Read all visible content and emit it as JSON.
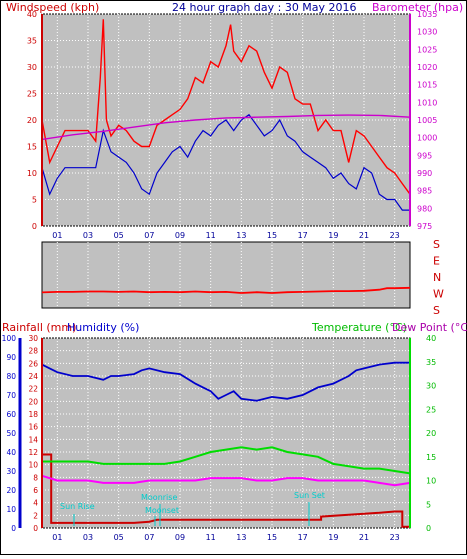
{
  "header": {
    "title": "24 hour graph day : 30 May 2016",
    "left_label": "Windspeed (kph)",
    "right_label": "Barometer (hpa)"
  },
  "colors": {
    "wind": "#ff0000",
    "gust": "#ff0000",
    "avg": "#0000cc",
    "baro": "#cc00cc",
    "dir": "#ff0000",
    "rain": "#cc0000",
    "hum": "#0000cc",
    "temp": "#00dd00",
    "dew": "#ff00ff",
    "sun": "#00cccc",
    "plot_bg": "#c0c0c0"
  },
  "x_ticks": [
    "01",
    "03",
    "05",
    "07",
    "09",
    "11",
    "13",
    "15",
    "17",
    "19",
    "21",
    "23"
  ],
  "wind_axis": {
    "ticks": [
      "0",
      "5",
      "10",
      "15",
      "20",
      "25",
      "30",
      "35",
      "40"
    ]
  },
  "baro_axis": {
    "ticks": [
      "975",
      "980",
      "985",
      "990",
      "995",
      "1000",
      "1005",
      "1010",
      "1015",
      "1020",
      "1025",
      "1030",
      "1035"
    ]
  },
  "dir_axis": {
    "labels": [
      "S",
      "E",
      "N",
      "W",
      "S"
    ]
  },
  "bottom_header": {
    "rain_label": "Rainfall (mm)",
    "hum_label": "Humidity (%)",
    "temp_label": "Temperature (°C)",
    "dew_label": "Dew Point (°C)"
  },
  "rain_axis": {
    "ticks": [
      "0",
      "2",
      "4",
      "6",
      "8",
      "10",
      "12",
      "14",
      "16",
      "18",
      "20",
      "22",
      "24",
      "26",
      "28",
      "30"
    ]
  },
  "hum_axis": {
    "ticks": [
      "0",
      "10",
      "20",
      "30",
      "40",
      "50",
      "60",
      "70",
      "80",
      "90",
      "100"
    ]
  },
  "temp_axis": {
    "ticks": [
      "0",
      "5",
      "10",
      "15",
      "20",
      "25",
      "30",
      "35",
      "40"
    ]
  },
  "annotations": {
    "sunrise": "Sun Rise",
    "moonrise": "Moonrise",
    "sunset": "Sun Set",
    "moonset": "Moonset"
  },
  "chart_data": [
    {
      "type": "line",
      "title": "24 hour graph day : 30 May 2016",
      "ylabel": "Windspeed (kph)",
      "y2label": "Barometer (hpa)",
      "xlim": [
        0,
        24
      ],
      "ylim": [
        0,
        40
      ],
      "y2lim": [
        975,
        1035
      ],
      "series": [
        {
          "name": "Gust",
          "axis": "left",
          "x": [
            0,
            0.5,
            1,
            1.5,
            2,
            2.5,
            3,
            3.5,
            3.8,
            4,
            4.2,
            4.5,
            5,
            5.5,
            6,
            6.5,
            7,
            7.5,
            8,
            8.5,
            9,
            9.5,
            10,
            10.5,
            11,
            11.5,
            12,
            12.3,
            12.5,
            13,
            13.5,
            14,
            14.5,
            15,
            15.5,
            16,
            16.5,
            17,
            17.5,
            18,
            18.5,
            19,
            19.5,
            20,
            20.5,
            21,
            21.5,
            22,
            22.5,
            23,
            23.5,
            24
          ],
          "y": [
            20,
            12,
            15,
            18,
            18,
            18,
            18,
            16,
            28,
            39,
            20,
            17,
            19,
            18,
            16,
            15,
            15,
            19,
            20,
            21,
            22,
            24,
            28,
            27,
            31,
            30,
            34,
            38,
            33,
            31,
            34,
            33,
            29,
            26,
            30,
            29,
            24,
            23,
            23,
            18,
            20,
            18,
            18,
            12,
            18,
            17,
            15,
            13,
            11,
            10,
            8,
            6
          ]
        },
        {
          "name": "Average",
          "axis": "left",
          "x": [
            0,
            0.5,
            1,
            1.5,
            2,
            2.5,
            3,
            3.5,
            4,
            4.5,
            5,
            5.5,
            6,
            6.5,
            7,
            7.5,
            8,
            8.5,
            9,
            9.5,
            10,
            10.5,
            11,
            11.5,
            12,
            12.5,
            13,
            13.5,
            14,
            14.5,
            15,
            15.5,
            16,
            16.5,
            17,
            17.5,
            18,
            18.5,
            19,
            19.5,
            20,
            20.5,
            21,
            21.5,
            22,
            22.5,
            23,
            23.5,
            24
          ],
          "y": [
            11,
            6,
            9,
            11,
            11,
            11,
            11,
            11,
            18,
            14,
            13,
            12,
            10,
            7,
            6,
            10,
            12,
            14,
            15,
            13,
            16,
            18,
            17,
            19,
            20,
            18,
            20,
            21,
            19,
            17,
            18,
            20,
            17,
            16,
            14,
            13,
            12,
            11,
            9,
            10,
            8,
            7,
            11,
            10,
            6,
            5,
            5,
            3,
            3
          ]
        },
        {
          "name": "Barometer",
          "axis": "right",
          "x": [
            0,
            2,
            4,
            6,
            8,
            10,
            12,
            14,
            16,
            18,
            20,
            22,
            24
          ],
          "y": [
            999.5,
            1000.8,
            1001.8,
            1003.0,
            1004.2,
            1005.0,
            1005.6,
            1005.8,
            1006.0,
            1006.3,
            1006.4,
            1006.3,
            1005.8
          ]
        }
      ]
    },
    {
      "type": "line",
      "ylabel": "Wind Direction",
      "xlim": [
        0,
        24
      ],
      "ylim": [
        0,
        360
      ],
      "series": [
        {
          "name": "Direction",
          "x": [
            0,
            1,
            2,
            3,
            4,
            5,
            6,
            7,
            8,
            9,
            10,
            11,
            12,
            13,
            14,
            15,
            16,
            17,
            18,
            19,
            20,
            21,
            22,
            22.5,
            23,
            24
          ],
          "y": [
            85,
            88,
            88,
            90,
            90,
            88,
            90,
            86,
            88,
            86,
            90,
            86,
            88,
            82,
            86,
            82,
            86,
            88,
            90,
            92,
            92,
            94,
            100,
            108,
            108,
            110
          ]
        }
      ]
    },
    {
      "type": "line",
      "xlim": [
        0,
        24
      ],
      "ylim": [
        0,
        30
      ],
      "series": [
        {
          "name": "Rainfall",
          "axis": "rain",
          "x": [
            0,
            0.6,
            0.6,
            2,
            4,
            6,
            7,
            7.5,
            10,
            14,
            18,
            18.2,
            18.2,
            20,
            22,
            23,
            23.5,
            23.5,
            24
          ],
          "y": [
            11.6,
            11.6,
            0.8,
            0.8,
            0.8,
            0.8,
            1.0,
            1.3,
            1.3,
            1.3,
            1.3,
            1.3,
            1.8,
            2.1,
            2.4,
            2.6,
            2.6,
            0.2,
            0.2
          ]
        },
        {
          "name": "Humidity",
          "axis": "hum",
          "x": [
            0,
            0.5,
            1,
            2,
            3,
            4,
            4.5,
            5,
            6,
            6.5,
            7,
            8,
            9,
            10,
            10.5,
            11,
            11.5,
            12,
            12.5,
            13,
            14,
            15,
            16,
            17,
            18,
            19,
            20,
            20.5,
            21,
            22,
            23,
            24
          ],
          "y": [
            86,
            84,
            82,
            80,
            80,
            78,
            80,
            80,
            81,
            83,
            84,
            82,
            81,
            76,
            74,
            72,
            68,
            70,
            72,
            68,
            67,
            69,
            68,
            70,
            74,
            76,
            80,
            83,
            84,
            86,
            87,
            87
          ]
        },
        {
          "name": "Temperature",
          "axis": "temp",
          "x": [
            0,
            1,
            2,
            3,
            4,
            5,
            6,
            7,
            8,
            9,
            10,
            11,
            12,
            13,
            14,
            15,
            16,
            17,
            18,
            19,
            20,
            21,
            22,
            23,
            24
          ],
          "y": [
            14,
            14,
            14,
            14,
            13.5,
            13.5,
            13.5,
            13.5,
            13.5,
            14,
            15,
            16,
            16.5,
            17,
            16.5,
            17,
            16,
            15.5,
            15,
            13.5,
            13,
            12.5,
            12.5,
            12,
            11.5
          ]
        },
        {
          "name": "Dew Point",
          "axis": "temp",
          "x": [
            0,
            1,
            2,
            3,
            4,
            5,
            6,
            7,
            8,
            9,
            10,
            11,
            12,
            13,
            14,
            15,
            16,
            17,
            18,
            19,
            20,
            21,
            22,
            23,
            24
          ],
          "y": [
            11,
            10,
            10,
            10,
            9.5,
            9.5,
            9.5,
            10,
            10,
            10,
            10,
            10.5,
            10.5,
            10.5,
            10,
            10,
            10.5,
            10.5,
            10,
            10,
            10,
            10,
            9.5,
            9,
            9.5
          ]
        }
      ]
    }
  ]
}
